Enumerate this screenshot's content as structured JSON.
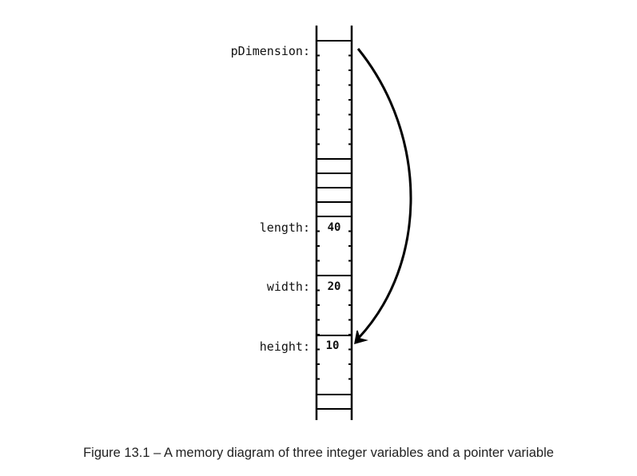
{
  "variables": {
    "pointer": {
      "label": "pDimension:",
      "value": ""
    },
    "length": {
      "label": "length:",
      "value": "40"
    },
    "width": {
      "label": "width:",
      "value": "20"
    },
    "height": {
      "label": "height:",
      "value": "10"
    }
  },
  "arrow": {
    "from": "pDimension",
    "to": "height"
  },
  "caption": "Figure 13.1 – A memory diagram of three integer variables and a pointer variable"
}
